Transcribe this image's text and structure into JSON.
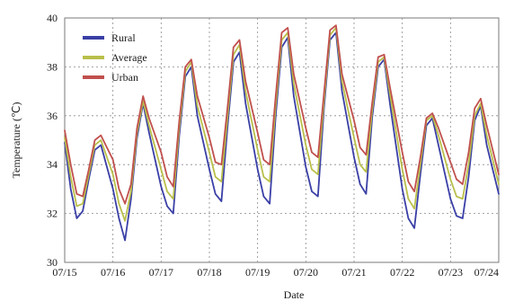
{
  "chart_data": {
    "type": "line",
    "xlabel": "Date",
    "ylabel": "Temperature (℃)",
    "ylim": [
      30,
      40
    ],
    "yticks": [
      "30",
      "32",
      "34",
      "36",
      "38",
      "40"
    ],
    "xlim": [
      "07/15",
      "07/24"
    ],
    "xticks": [
      "07/15",
      "07/16",
      "07/17",
      "07/18",
      "07/19",
      "07/20",
      "07/21",
      "07/22",
      "07/23",
      "07/24"
    ],
    "grid": true,
    "legend_position": "top-left",
    "series": [
      {
        "name": "Rural",
        "color": "#3a3fa6",
        "points": [
          [
            "07/15 00:00",
            34.9
          ],
          [
            "07/15 03:00",
            33.0
          ],
          [
            "07/15 06:00",
            31.8
          ],
          [
            "07/15 09:00",
            32.1
          ],
          [
            "07/15 12:00",
            33.4
          ],
          [
            "07/15 15:00",
            34.6
          ],
          [
            "07/15 18:00",
            34.8
          ],
          [
            "07/16 00:00",
            33.0
          ],
          [
            "07/16 03:00",
            31.8
          ],
          [
            "07/16 06:00",
            30.9
          ],
          [
            "07/16 09:00",
            32.6
          ],
          [
            "07/16 12:00",
            35.1
          ],
          [
            "07/16 15:00",
            36.5
          ],
          [
            "07/16 18:00",
            35.3
          ],
          [
            "07/17 00:00",
            33.1
          ],
          [
            "07/17 03:00",
            32.3
          ],
          [
            "07/17 06:00",
            32.0
          ],
          [
            "07/17 09:00",
            35.2
          ],
          [
            "07/17 12:00",
            37.6
          ],
          [
            "07/17 15:00",
            38.0
          ],
          [
            "07/17 18:00",
            36.0
          ],
          [
            "07/18 00:00",
            33.8
          ],
          [
            "07/18 03:00",
            32.8
          ],
          [
            "07/18 06:00",
            32.5
          ],
          [
            "07/18 09:00",
            35.5
          ],
          [
            "07/18 12:00",
            38.2
          ],
          [
            "07/18 15:00",
            38.6
          ],
          [
            "07/18 18:00",
            36.5
          ],
          [
            "07/19 00:00",
            33.8
          ],
          [
            "07/19 03:00",
            32.7
          ],
          [
            "07/19 06:00",
            32.4
          ],
          [
            "07/19 09:00",
            36.0
          ],
          [
            "07/19 12:00",
            38.8
          ],
          [
            "07/19 15:00",
            39.2
          ],
          [
            "07/19 18:00",
            36.8
          ],
          [
            "07/20 00:00",
            33.9
          ],
          [
            "07/20 03:00",
            32.9
          ],
          [
            "07/20 06:00",
            32.7
          ],
          [
            "07/20 09:00",
            36.3
          ],
          [
            "07/20 12:00",
            39.1
          ],
          [
            "07/20 15:00",
            39.4
          ],
          [
            "07/20 18:00",
            37.0
          ],
          [
            "07/21 00:00",
            34.3
          ],
          [
            "07/21 03:00",
            33.2
          ],
          [
            "07/21 06:00",
            32.8
          ],
          [
            "07/21 09:00",
            35.9
          ],
          [
            "07/21 12:00",
            38.0
          ],
          [
            "07/21 15:00",
            38.3
          ],
          [
            "07/21 18:00",
            36.4
          ],
          [
            "07/22 00:00",
            33.0
          ],
          [
            "07/22 03:00",
            31.8
          ],
          [
            "07/22 06:00",
            31.4
          ],
          [
            "07/22 09:00",
            33.6
          ],
          [
            "07/22 12:00",
            35.6
          ],
          [
            "07/22 15:00",
            35.9
          ],
          [
            "07/22 18:00",
            34.8
          ],
          [
            "07/23 00:00",
            32.6
          ],
          [
            "07/23 03:00",
            31.9
          ],
          [
            "07/23 06:00",
            31.8
          ],
          [
            "07/23 09:00",
            33.5
          ],
          [
            "07/23 12:00",
            35.8
          ],
          [
            "07/23 15:00",
            36.4
          ],
          [
            "07/23 18:00",
            34.8
          ],
          [
            "07/24 00:00",
            32.8
          ]
        ]
      },
      {
        "name": "Average",
        "color": "#b9bf4a",
        "points": [
          [
            "07/15 00:00",
            35.1
          ],
          [
            "07/15 03:00",
            33.5
          ],
          [
            "07/15 06:00",
            32.3
          ],
          [
            "07/15 09:00",
            32.4
          ],
          [
            "07/15 12:00",
            33.6
          ],
          [
            "07/15 15:00",
            34.8
          ],
          [
            "07/15 18:00",
            35.0
          ],
          [
            "07/16 00:00",
            33.6
          ],
          [
            "07/16 03:00",
            32.4
          ],
          [
            "07/16 06:00",
            31.7
          ],
          [
            "07/16 09:00",
            32.9
          ],
          [
            "07/16 12:00",
            35.3
          ],
          [
            "07/16 15:00",
            36.6
          ],
          [
            "07/16 18:00",
            35.6
          ],
          [
            "07/17 00:00",
            33.8
          ],
          [
            "07/17 03:00",
            32.9
          ],
          [
            "07/17 06:00",
            32.6
          ],
          [
            "07/17 09:00",
            35.5
          ],
          [
            "07/17 12:00",
            37.8
          ],
          [
            "07/17 15:00",
            38.2
          ],
          [
            "07/17 18:00",
            36.4
          ],
          [
            "07/18 00:00",
            34.5
          ],
          [
            "07/18 03:00",
            33.5
          ],
          [
            "07/18 06:00",
            33.3
          ],
          [
            "07/18 09:00",
            35.9
          ],
          [
            "07/18 12:00",
            38.5
          ],
          [
            "07/18 15:00",
            38.9
          ],
          [
            "07/18 18:00",
            37.0
          ],
          [
            "07/19 00:00",
            34.6
          ],
          [
            "07/19 03:00",
            33.5
          ],
          [
            "07/19 06:00",
            33.3
          ],
          [
            "07/19 09:00",
            36.4
          ],
          [
            "07/19 12:00",
            39.1
          ],
          [
            "07/19 15:00",
            39.4
          ],
          [
            "07/19 18:00",
            37.3
          ],
          [
            "07/20 00:00",
            34.8
          ],
          [
            "07/20 03:00",
            33.8
          ],
          [
            "07/20 06:00",
            33.6
          ],
          [
            "07/20 09:00",
            36.6
          ],
          [
            "07/20 12:00",
            39.3
          ],
          [
            "07/20 15:00",
            39.6
          ],
          [
            "07/20 18:00",
            37.4
          ],
          [
            "07/21 00:00",
            35.1
          ],
          [
            "07/21 03:00",
            34.0
          ],
          [
            "07/21 06:00",
            33.7
          ],
          [
            "07/21 09:00",
            36.2
          ],
          [
            "07/21 12:00",
            38.2
          ],
          [
            "07/21 15:00",
            38.4
          ],
          [
            "07/21 18:00",
            36.8
          ],
          [
            "07/22 00:00",
            33.8
          ],
          [
            "07/22 03:00",
            32.6
          ],
          [
            "07/22 06:00",
            32.2
          ],
          [
            "07/22 09:00",
            34.0
          ],
          [
            "07/22 12:00",
            35.8
          ],
          [
            "07/22 15:00",
            36.0
          ],
          [
            "07/22 18:00",
            35.2
          ],
          [
            "07/23 00:00",
            33.4
          ],
          [
            "07/23 03:00",
            32.7
          ],
          [
            "07/23 06:00",
            32.6
          ],
          [
            "07/23 09:00",
            34.0
          ],
          [
            "07/23 12:00",
            36.0
          ],
          [
            "07/23 15:00",
            36.5
          ],
          [
            "07/23 18:00",
            35.2
          ],
          [
            "07/24 00:00",
            33.2
          ]
        ]
      },
      {
        "name": "Urban",
        "color": "#c0504d",
        "points": [
          [
            "07/15 00:00",
            35.4
          ],
          [
            "07/15 03:00",
            34.0
          ],
          [
            "07/15 06:00",
            32.8
          ],
          [
            "07/15 09:00",
            32.7
          ],
          [
            "07/15 12:00",
            33.8
          ],
          [
            "07/15 15:00",
            35.0
          ],
          [
            "07/15 18:00",
            35.2
          ],
          [
            "07/16 00:00",
            34.2
          ],
          [
            "07/16 03:00",
            33.0
          ],
          [
            "07/16 06:00",
            32.4
          ],
          [
            "07/16 09:00",
            33.2
          ],
          [
            "07/16 12:00",
            35.5
          ],
          [
            "07/16 15:00",
            36.8
          ],
          [
            "07/16 18:00",
            35.9
          ],
          [
            "07/17 00:00",
            34.5
          ],
          [
            "07/17 03:00",
            33.5
          ],
          [
            "07/17 06:00",
            33.1
          ],
          [
            "07/17 09:00",
            35.8
          ],
          [
            "07/17 12:00",
            38.0
          ],
          [
            "07/17 15:00",
            38.3
          ],
          [
            "07/17 18:00",
            36.8
          ],
          [
            "07/18 00:00",
            35.1
          ],
          [
            "07/18 03:00",
            34.1
          ],
          [
            "07/18 06:00",
            34.0
          ],
          [
            "07/18 09:00",
            36.3
          ],
          [
            "07/18 12:00",
            38.8
          ],
          [
            "07/18 15:00",
            39.1
          ],
          [
            "07/18 18:00",
            37.4
          ],
          [
            "07/19 00:00",
            35.3
          ],
          [
            "07/19 03:00",
            34.2
          ],
          [
            "07/19 06:00",
            34.0
          ],
          [
            "07/19 09:00",
            36.8
          ],
          [
            "07/19 12:00",
            39.4
          ],
          [
            "07/19 15:00",
            39.6
          ],
          [
            "07/19 18:00",
            37.7
          ],
          [
            "07/20 00:00",
            35.5
          ],
          [
            "07/20 03:00",
            34.5
          ],
          [
            "07/20 06:00",
            34.3
          ],
          [
            "07/20 09:00",
            36.9
          ],
          [
            "07/20 12:00",
            39.5
          ],
          [
            "07/20 15:00",
            39.7
          ],
          [
            "07/20 18:00",
            37.7
          ],
          [
            "07/21 00:00",
            35.8
          ],
          [
            "07/21 03:00",
            34.7
          ],
          [
            "07/21 06:00",
            34.4
          ],
          [
            "07/21 09:00",
            36.5
          ],
          [
            "07/21 12:00",
            38.4
          ],
          [
            "07/21 15:00",
            38.5
          ],
          [
            "07/21 18:00",
            37.1
          ],
          [
            "07/22 00:00",
            34.5
          ],
          [
            "07/22 03:00",
            33.3
          ],
          [
            "07/22 06:00",
            32.9
          ],
          [
            "07/22 09:00",
            34.3
          ],
          [
            "07/22 12:00",
            35.9
          ],
          [
            "07/22 15:00",
            36.1
          ],
          [
            "07/22 18:00",
            35.5
          ],
          [
            "07/23 00:00",
            34.1
          ],
          [
            "07/23 03:00",
            33.4
          ],
          [
            "07/23 06:00",
            33.2
          ],
          [
            "07/23 09:00",
            34.5
          ],
          [
            "07/23 12:00",
            36.3
          ],
          [
            "07/23 15:00",
            36.7
          ],
          [
            "07/23 18:00",
            35.6
          ],
          [
            "07/24 00:00",
            33.6
          ]
        ]
      }
    ]
  }
}
